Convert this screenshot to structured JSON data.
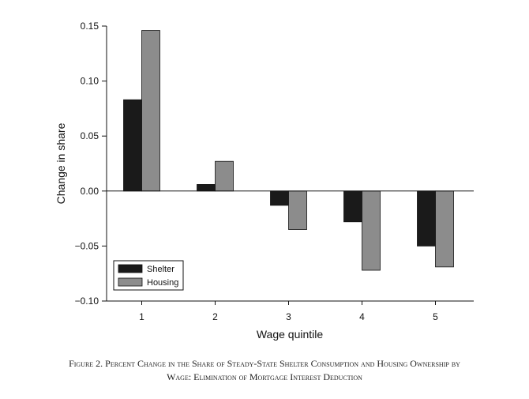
{
  "chart_data": {
    "type": "bar",
    "categories": [
      "1",
      "2",
      "3",
      "4",
      "5"
    ],
    "series": [
      {
        "name": "Shelter",
        "color": "#1a1a1a",
        "values": [
          0.083,
          0.006,
          -0.013,
          -0.028,
          -0.05
        ]
      },
      {
        "name": "Housing",
        "color": "#8c8c8c",
        "values": [
          0.146,
          0.027,
          -0.035,
          -0.072,
          -0.069
        ]
      }
    ],
    "xlabel": "Wage quintile",
    "ylabel": "Change in share",
    "ylim": [
      -0.1,
      0.15
    ],
    "yticks": [
      0.15,
      0.1,
      0.05,
      0.0,
      -0.05,
      -0.1
    ],
    "ytick_labels": [
      "0.15",
      "0.10",
      "0.05",
      "0.00",
      "−0.05",
      "−0.10"
    ],
    "legend_position": "bottom-left",
    "grid": false
  },
  "caption": {
    "line1": "Figure 2. Percent Change in the Share of Steady-State Shelter Consumption and Housing Ownership by",
    "line2": "Wage: Elimination of Mortgage Interest Deduction"
  }
}
